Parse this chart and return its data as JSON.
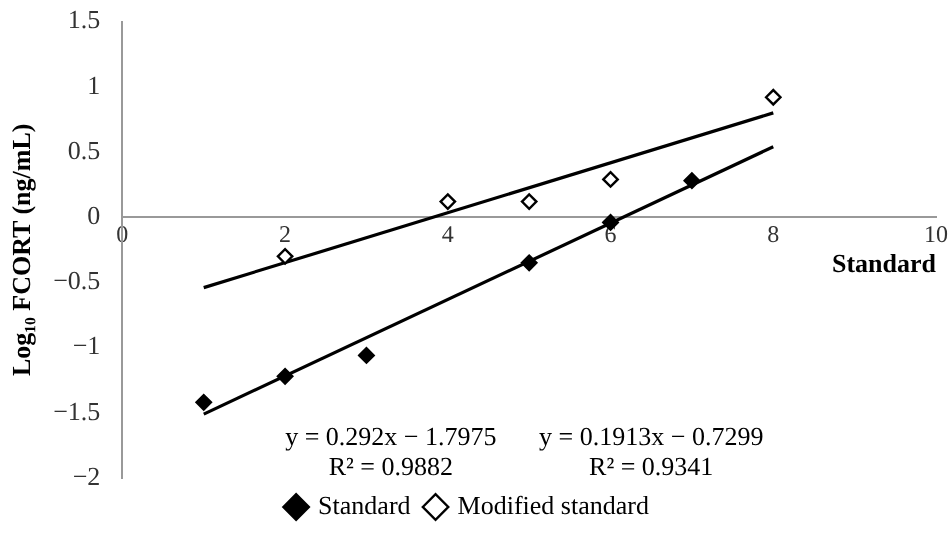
{
  "chart_data": {
    "type": "scatter",
    "xlabel": "Standard",
    "ylabel": "Log₁₀ FCORT (ng/mL)",
    "xlim": [
      0,
      10
    ],
    "xticks": [
      0,
      2,
      4,
      6,
      8,
      10
    ],
    "ylim": [
      -2,
      1.5
    ],
    "yticks": [
      {
        "value": -2,
        "label": "−2"
      },
      {
        "value": -1.5,
        "label": "−1.5"
      },
      {
        "value": -1,
        "label": "−1"
      },
      {
        "value": -0.5,
        "label": "−0.5"
      },
      0,
      0.5,
      1,
      1.5
    ],
    "grid": false,
    "legend": "bottom",
    "marker": "diamond",
    "annotations": [
      "y = 0.292x − 1.7975\nR² = 0.9882",
      "y = 0.1913x − 0.7299\nR² = 0.9341"
    ],
    "series": [
      {
        "name": "Standard",
        "color": "#000000",
        "x": [
          1,
          2,
          3,
          5,
          6,
          7
        ],
        "values": [
          -1.42,
          -1.22,
          -1.06,
          -0.35,
          -0.04,
          0.28
        ]
      },
      {
        "name": "Modified standard",
        "color": "#ffffff",
        "x": [
          2,
          4,
          5,
          6,
          8
        ],
        "values": [
          -0.3,
          0.12,
          0.12,
          0.29,
          0.92
        ]
      },
      {
        "type": "line",
        "marker": "none",
        "color": "#000000",
        "x": [
          1,
          8
        ],
        "values": [
          -1.51,
          0.54
        ]
      },
      {
        "type": "line",
        "marker": "none",
        "color": "#000000",
        "x": [
          1,
          8
        ],
        "values": [
          -0.54,
          0.8
        ]
      }
    ]
  }
}
